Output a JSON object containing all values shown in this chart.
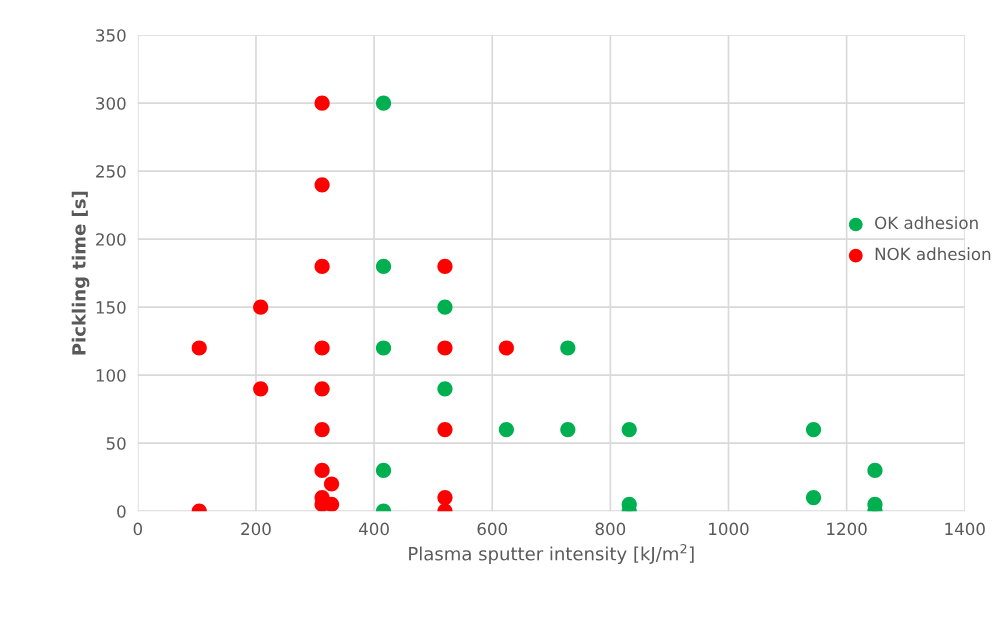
{
  "chart_data": {
    "type": "scatter",
    "xlabel": "Plasma sputter intensity [kJ/m$^{2}$]",
    "ylabel": "Pickling time [s]",
    "xlim": [
      0,
      1400
    ],
    "xticks": [
      0,
      200,
      400,
      600,
      800,
      1000,
      1200,
      1400
    ],
    "ylim": [
      0,
      350
    ],
    "yticks": [
      0,
      50,
      100,
      150,
      200,
      250,
      300,
      350
    ],
    "grid": true,
    "legend": "right",
    "marker": "circle",
    "series": [
      {
        "name": "OK adhesion",
        "color": "#00b050",
        "x": [
          416,
          416,
          416,
          416,
          416,
          520,
          520,
          624,
          728,
          728,
          832,
          832,
          832,
          1144,
          1144,
          1248,
          1248,
          1248
        ],
        "values": [
          300,
          180,
          120,
          30,
          0,
          150,
          90,
          60,
          120,
          60,
          60,
          5,
          0,
          60,
          10,
          30,
          5,
          0
        ]
      },
      {
        "name": "NOK adhesion",
        "color": "#ff0000",
        "x": [
          104,
          104,
          208,
          208,
          312,
          312,
          312,
          312,
          312,
          312,
          312,
          312,
          312,
          328,
          328,
          520,
          520,
          520,
          520,
          520,
          624
        ],
        "values": [
          120,
          0,
          150,
          90,
          300,
          240,
          180,
          120,
          90,
          60,
          30,
          10,
          5,
          20,
          5,
          180,
          120,
          60,
          10,
          0,
          120
        ]
      }
    ]
  }
}
